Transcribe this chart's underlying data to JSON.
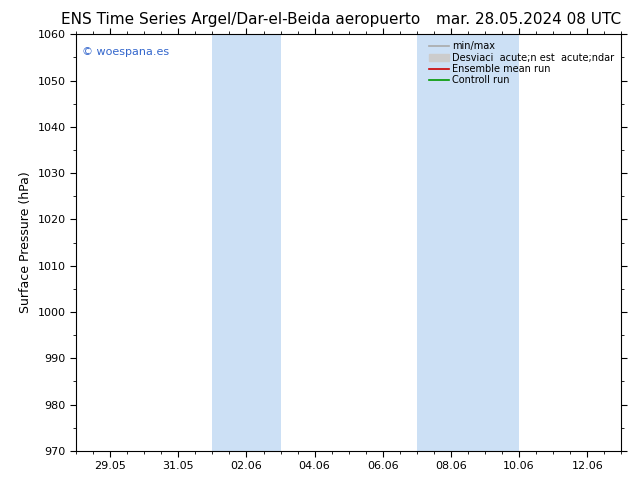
{
  "title_left": "ENS Time Series Argel/Dar-el-Beida aeropuerto",
  "title_right": "mar. 28.05.2024 08 UTC",
  "ylabel": "Surface Pressure (hPa)",
  "ylim": [
    970,
    1060
  ],
  "yticks": [
    970,
    980,
    990,
    1000,
    1010,
    1020,
    1030,
    1040,
    1050,
    1060
  ],
  "xtick_labels": [
    "29.05",
    "31.05",
    "02.06",
    "04.06",
    "06.06",
    "08.06",
    "10.06",
    "12.06"
  ],
  "xtick_positions": [
    1,
    3,
    5,
    7,
    9,
    11,
    13,
    15
  ],
  "xlim": [
    0,
    16
  ],
  "shaded_bands": [
    {
      "xmin": 4.0,
      "xmax": 6.0
    },
    {
      "xmin": 10.0,
      "xmax": 13.0
    }
  ],
  "shaded_color": "#cce0f5",
  "watermark": "© woespana.es",
  "watermark_color": "#3366cc",
  "legend_labels": [
    "min/max",
    "Desviaci  acute;n est  acute;ndar",
    "Ensemble mean run",
    "Controll run"
  ],
  "legend_colors": [
    "#aaaaaa",
    "#cccccc",
    "#cc0000",
    "#009900"
  ],
  "bg_color": "#ffffff",
  "plot_bg_color": "#ffffff",
  "title_fontsize": 11,
  "tick_fontsize": 8,
  "ylabel_fontsize": 9
}
